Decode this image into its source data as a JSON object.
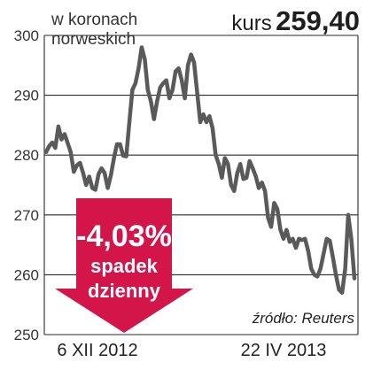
{
  "header": {
    "kurs_label": "kurs",
    "kurs_value": "259,40"
  },
  "callout": {
    "change": "-4,03%",
    "label_line1": "spadek",
    "label_line2": "dzienny",
    "color": "#d4154a"
  },
  "source": "źródło: Reuters",
  "chart_data": {
    "type": "line",
    "unit_label_line1": "w koronach",
    "unit_label_line2": "norweskich",
    "xlabels": [
      "6 XII 2012",
      "22 IV 2013"
    ],
    "ylim": [
      250,
      300
    ],
    "yticks": [
      250,
      260,
      270,
      280,
      290,
      300
    ],
    "grid": true,
    "line_color": "#5a5a5a",
    "series": [
      {
        "values": [
          280.5,
          281.5,
          282.1,
          281.2,
          284.8,
          282.6,
          283.5,
          282.0,
          280.5,
          277.2,
          278.3,
          278.7,
          277.0,
          275.0,
          276.4,
          274.5,
          274.2,
          276.8,
          277.8,
          277.0,
          274.5,
          276.6,
          279.5,
          281.8,
          281.8,
          279.9,
          279.8,
          285.5,
          290.9,
          292.0,
          294.5,
          298.0,
          296.0,
          290.9,
          289.0,
          286.0,
          289.0,
          291.3,
          292.0,
          292.5,
          289.5,
          290.9,
          294.0,
          294.5,
          292.5,
          289.5,
          295.0,
          296.8,
          295.5,
          290.5,
          285.5,
          286.8,
          285.5,
          286.5,
          284.5,
          280.0,
          278.5,
          276.2,
          279.5,
          278.5,
          275.0,
          274.0,
          277.0,
          278.5,
          276.0,
          276.2,
          279.0,
          277.8,
          276.5,
          274.5,
          275.4,
          274.0,
          269.5,
          268.0,
          272.0,
          271.0,
          267.5,
          266.0,
          267.5,
          265.5,
          266.0,
          264.5,
          266.0,
          265.8,
          266.0,
          264.0,
          261.0,
          260.0,
          259.7,
          261.0,
          263.5,
          266.0,
          265.7,
          263.0,
          260.0,
          257.5,
          257.0,
          261.0,
          270.0,
          266.0,
          259.4
        ]
      }
    ]
  }
}
